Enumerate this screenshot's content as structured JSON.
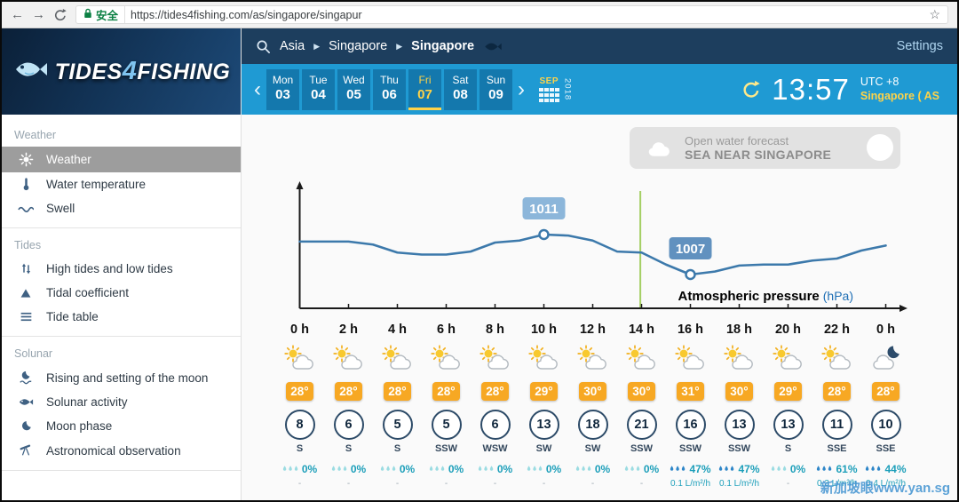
{
  "browser": {
    "secure_label": "安全",
    "url": "https://tides4fishing.com/as/singapore/singapur"
  },
  "logo": {
    "part1": "TIDES",
    "part2": "4",
    "part3": "FISHING"
  },
  "sidebar": {
    "sections": [
      {
        "label": "Weather",
        "items": [
          {
            "label": "Weather",
            "icon": "sun",
            "active": true
          },
          {
            "label": "Water temperature",
            "icon": "thermometer"
          },
          {
            "label": "Swell",
            "icon": "wave"
          }
        ]
      },
      {
        "label": "Tides",
        "items": [
          {
            "label": "High tides and low tides",
            "icon": "tide-arrows"
          },
          {
            "label": "Tidal coefficient",
            "icon": "triangle"
          },
          {
            "label": "Tide table",
            "icon": "list"
          }
        ]
      },
      {
        "label": "Solunar",
        "items": [
          {
            "label": "Rising and setting of the moon",
            "icon": "moonrise"
          },
          {
            "label": "Solunar activity",
            "icon": "fish"
          },
          {
            "label": "Moon phase",
            "icon": "moon"
          },
          {
            "label": "Astronomical observation",
            "icon": "telescope"
          }
        ]
      }
    ]
  },
  "topnav": {
    "breadcrumb": [
      "Asia",
      "Singapore",
      "Singapore"
    ],
    "settings_label": "Settings"
  },
  "datebar": {
    "days": [
      {
        "day": "Mon",
        "date": "03"
      },
      {
        "day": "Tue",
        "date": "04"
      },
      {
        "day": "Wed",
        "date": "05"
      },
      {
        "day": "Thu",
        "date": "06"
      },
      {
        "day": "Fri",
        "date": "07",
        "active": true
      },
      {
        "day": "Sat",
        "date": "08"
      },
      {
        "day": "Sun",
        "date": "09"
      }
    ],
    "month": "SEP",
    "year": "2018",
    "time": "13:57",
    "utc_label": "UTC +8",
    "location_label": "Singapore ( AS"
  },
  "banner": {
    "line1": "Open water forecast",
    "line2": "SEA NEAR SINGAPORE"
  },
  "chart_data": {
    "type": "line",
    "title": "Atmospheric pressure",
    "unit_label": "(hPa)",
    "x_hours": [
      0,
      1,
      2,
      3,
      4,
      5,
      6,
      7,
      8,
      9,
      10,
      11,
      12,
      13,
      14,
      15,
      16,
      17,
      18,
      19,
      20,
      21,
      22,
      23,
      24
    ],
    "pressure_hpa": [
      1010.3,
      1010.3,
      1010.3,
      1010,
      1009.2,
      1009,
      1009,
      1009.3,
      1010.2,
      1010.4,
      1011,
      1010.9,
      1010.4,
      1009.3,
      1009.2,
      1008,
      1007,
      1007.3,
      1007.9,
      1008,
      1008,
      1008.4,
      1008.6,
      1009.4,
      1009.9
    ],
    "x_tick_labels": [
      "0 h",
      "2 h",
      "4 h",
      "6 h",
      "8 h",
      "10 h",
      "12 h",
      "14 h",
      "16 h",
      "18 h",
      "20 h",
      "22 h",
      "0 h"
    ],
    "ylim": [
      1004,
      1013
    ],
    "annotations": [
      {
        "hour": 10,
        "value": 1011,
        "label": "1011"
      },
      {
        "hour": 16,
        "value": 1007,
        "label": "1007"
      }
    ],
    "current_time_hour": 13.95,
    "line_color": "#3c79ab",
    "current_time_color": "#a4cf63"
  },
  "forecast": {
    "columns": [
      {
        "icon": "sun-cloud",
        "temp": "28°",
        "wind": "8",
        "dir": "S",
        "pct": "0%",
        "amount": "-"
      },
      {
        "icon": "sun-cloud",
        "temp": "28°",
        "wind": "6",
        "dir": "S",
        "pct": "0%",
        "amount": "-"
      },
      {
        "icon": "sun-cloud",
        "temp": "28°",
        "wind": "5",
        "dir": "S",
        "pct": "0%",
        "amount": "-"
      },
      {
        "icon": "sun-cloud",
        "temp": "28°",
        "wind": "5",
        "dir": "SSW",
        "pct": "0%",
        "amount": "-"
      },
      {
        "icon": "sun-cloud",
        "temp": "28°",
        "wind": "6",
        "dir": "WSW",
        "pct": "0%",
        "amount": "-"
      },
      {
        "icon": "sun-cloud",
        "temp": "29°",
        "wind": "13",
        "dir": "SW",
        "pct": "0%",
        "amount": "-"
      },
      {
        "icon": "sun-cloud",
        "temp": "30°",
        "wind": "18",
        "dir": "SW",
        "pct": "0%",
        "amount": "-"
      },
      {
        "icon": "sun-cloud",
        "temp": "30°",
        "wind": "21",
        "dir": "SSW",
        "pct": "0%",
        "amount": "-"
      },
      {
        "icon": "sun-cloud",
        "temp": "31°",
        "wind": "16",
        "dir": "SSW",
        "pct": "47%",
        "amount": "0.1 L/m²/h"
      },
      {
        "icon": "sun-cloud",
        "temp": "30°",
        "wind": "13",
        "dir": "SSW",
        "pct": "47%",
        "amount": "0.1 L/m²/h"
      },
      {
        "icon": "sun-cloud",
        "temp": "29°",
        "wind": "13",
        "dir": "S",
        "pct": "0%",
        "amount": "-"
      },
      {
        "icon": "sun-cloud",
        "temp": "28°",
        "wind": "11",
        "dir": "SSE",
        "pct": "61%",
        "amount": "0.3 L/m²/h"
      },
      {
        "icon": "moon-cloud",
        "temp": "28°",
        "wind": "10",
        "dir": "SSE",
        "pct": "44%",
        "amount": "0.4 L/m²/h"
      }
    ]
  },
  "watermark": {
    "text": "新加坡眼www.yan.sg"
  }
}
